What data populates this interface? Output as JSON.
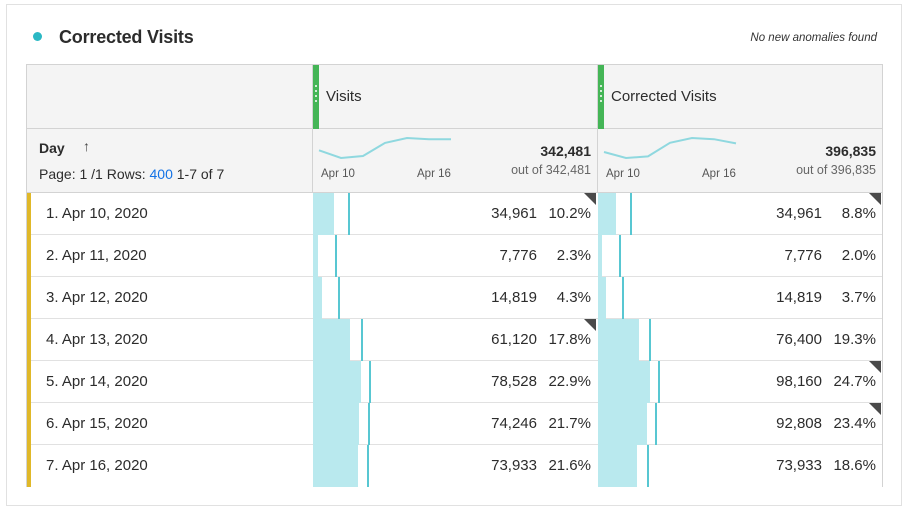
{
  "panel": {
    "title": "Corrected Visits",
    "anomaly_note": "No new anomalies found"
  },
  "dimension": {
    "label": "Day",
    "sort_icon": "arrow-up-icon",
    "page_label": "Page: 1 /1",
    "rows_label": "Rows:",
    "rows_value": "400",
    "range": "1-7 of 7"
  },
  "columns": [
    {
      "title": "Visits",
      "total": "342,481",
      "total_sub": "out of 342,481",
      "spark_start": "Apr 10",
      "spark_end": "Apr 16",
      "spark_values": [
        34961,
        7776,
        14819,
        61120,
        78528,
        74246,
        73933
      ]
    },
    {
      "title": "Corrected Visits",
      "total": "396,835",
      "total_sub": "out of 396,835",
      "spark_start": "Apr 10",
      "spark_end": "Apr 16",
      "spark_values": [
        34961,
        7776,
        14819,
        76400,
        98160,
        92808,
        73933
      ]
    }
  ],
  "rows": [
    {
      "label": "1. Apr 10, 2020",
      "cells": [
        {
          "value": "34,961",
          "pct": "10.2%",
          "frac": 0.102,
          "anomaly": true
        },
        {
          "value": "34,961",
          "pct": "8.8%",
          "frac": 0.088,
          "anomaly": true
        }
      ]
    },
    {
      "label": "2. Apr 11, 2020",
      "cells": [
        {
          "value": "7,776",
          "pct": "2.3%",
          "frac": 0.023,
          "anomaly": false
        },
        {
          "value": "7,776",
          "pct": "2.0%",
          "frac": 0.02,
          "anomaly": false
        }
      ]
    },
    {
      "label": "3. Apr 12, 2020",
      "cells": [
        {
          "value": "14,819",
          "pct": "4.3%",
          "frac": 0.043,
          "anomaly": false
        },
        {
          "value": "14,819",
          "pct": "3.7%",
          "frac": 0.037,
          "anomaly": false
        }
      ]
    },
    {
      "label": "4. Apr 13, 2020",
      "cells": [
        {
          "value": "61,120",
          "pct": "17.8%",
          "frac": 0.178,
          "anomaly": true
        },
        {
          "value": "76,400",
          "pct": "19.3%",
          "frac": 0.193,
          "anomaly": false
        }
      ]
    },
    {
      "label": "5. Apr 14, 2020",
      "cells": [
        {
          "value": "78,528",
          "pct": "22.9%",
          "frac": 0.229,
          "anomaly": false
        },
        {
          "value": "98,160",
          "pct": "24.7%",
          "frac": 0.247,
          "anomaly": true
        }
      ]
    },
    {
      "label": "6. Apr 15, 2020",
      "cells": [
        {
          "value": "74,246",
          "pct": "21.7%",
          "frac": 0.217,
          "anomaly": false
        },
        {
          "value": "92,808",
          "pct": "23.4%",
          "frac": 0.234,
          "anomaly": true
        }
      ]
    },
    {
      "label": "7. Apr 16, 2020",
      "cells": [
        {
          "value": "73,933",
          "pct": "21.6%",
          "frac": 0.216,
          "anomaly": false
        },
        {
          "value": "73,933",
          "pct": "18.6%",
          "frac": 0.186,
          "anomaly": false
        }
      ]
    }
  ],
  "colors": {
    "accent": "#2bb8c4",
    "bar": "#b9e9ee",
    "bar_marker": "#58c7d2",
    "column_handle": "#44b556",
    "row_accent": "#e0b829",
    "link": "#1473e6"
  }
}
